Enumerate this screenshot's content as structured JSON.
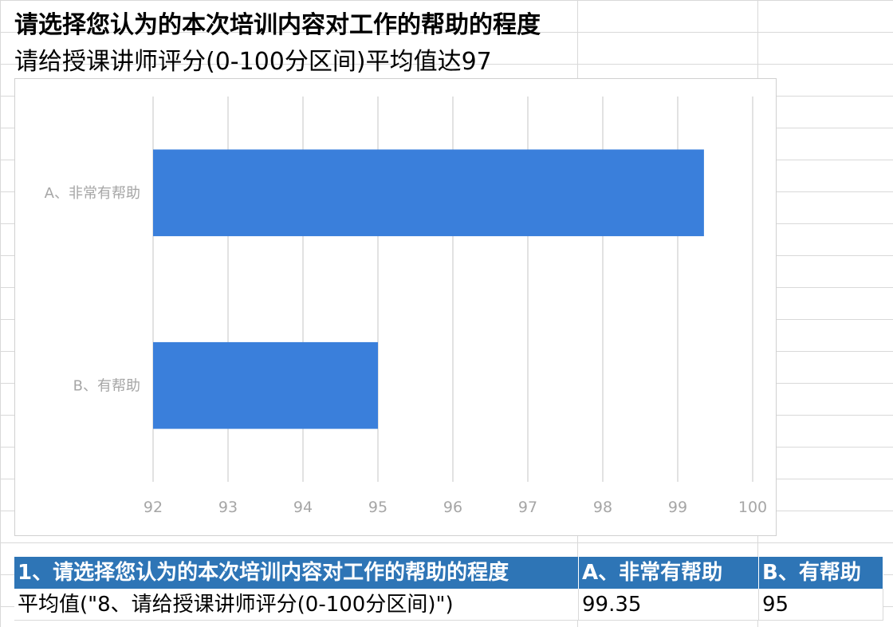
{
  "sheet": {
    "title": "请选择您认为的本次培训内容对工作的帮助的程度",
    "subtitle": "请给授课讲师评分(0-100分区间)平均值达97"
  },
  "chart_data": {
    "type": "bar",
    "orientation": "horizontal",
    "categories": [
      "A、非常有帮助",
      "B、有帮助"
    ],
    "values": [
      99.35,
      95
    ],
    "xlim": [
      92,
      100
    ],
    "ticks": [
      92,
      93,
      94,
      95,
      96,
      97,
      98,
      99,
      100
    ],
    "tick_labels": [
      "92",
      "93",
      "94",
      "95",
      "96",
      "97",
      "98",
      "99",
      "100"
    ],
    "grid": true,
    "legend": "none",
    "bar_color": "#3a7fdb"
  },
  "table": {
    "header": [
      "1、请选择您认为的本次培训内容对工作的帮助的程度",
      "A、非常有帮助",
      "B、有帮助"
    ],
    "row": [
      "平均值(\"8、请给授课讲师评分(0-100分区间)\")",
      "99.35",
      "95"
    ]
  }
}
